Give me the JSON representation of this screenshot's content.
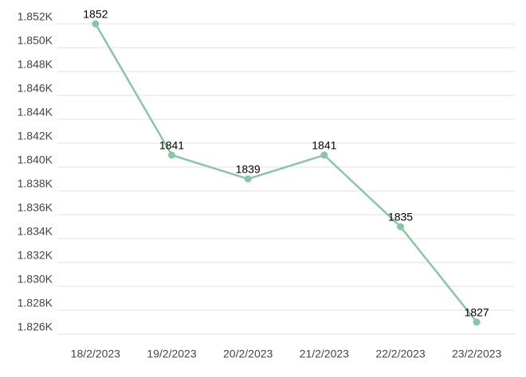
{
  "chart_data": {
    "type": "line",
    "categories": [
      "18/2/2023",
      "19/2/2023",
      "20/2/2023",
      "21/2/2023",
      "22/2/2023",
      "23/2/2023"
    ],
    "series": [
      {
        "color": "#8cc5a5",
        "values": [
          1852,
          1841,
          1839,
          1841,
          1835,
          1827
        ]
      }
    ],
    "ylim": [
      1826,
      1852
    ],
    "yticks": [
      {
        "value": 1826,
        "label": "1.826K"
      },
      {
        "value": 1828,
        "label": "1.828K"
      },
      {
        "value": 1830,
        "label": "1.830K"
      },
      {
        "value": 1832,
        "label": "1.832K"
      },
      {
        "value": 1834,
        "label": "1.834K"
      },
      {
        "value": 1836,
        "label": "1.836K"
      },
      {
        "value": 1838,
        "label": "1.838K"
      },
      {
        "value": 1840,
        "label": "1.840K"
      },
      {
        "value": 1842,
        "label": "1.842K"
      },
      {
        "value": 1844,
        "label": "1.844K"
      },
      {
        "value": 1846,
        "label": "1.846K"
      },
      {
        "value": 1848,
        "label": "1.848K"
      },
      {
        "value": 1850,
        "label": "1.850K"
      },
      {
        "value": 1852,
        "label": "1.852K"
      }
    ],
    "grid": true
  }
}
